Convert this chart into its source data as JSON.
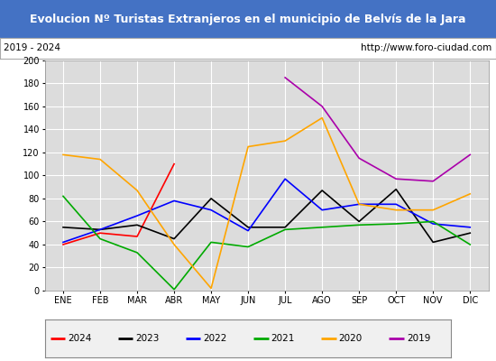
{
  "title": "Evolucion Nº Turistas Extranjeros en el municipio de Belvís de la Jara",
  "subtitle_left": "2019 - 2024",
  "subtitle_right": "http://www.foro-ciudad.com",
  "title_bg_color": "#4472c4",
  "title_text_color": "#ffffff",
  "subtitle_bg_color": "#ffffff",
  "subtitle_text_color": "#000000",
  "plot_bg_color": "#dcdcdc",
  "grid_color": "#ffffff",
  "months": [
    "ENE",
    "FEB",
    "MAR",
    "ABR",
    "MAY",
    "JUN",
    "JUL",
    "AGO",
    "SEP",
    "OCT",
    "NOV",
    "DIC"
  ],
  "ylim": [
    0,
    200
  ],
  "yticks": [
    0,
    20,
    40,
    60,
    80,
    100,
    120,
    140,
    160,
    180,
    200
  ],
  "series": {
    "2024": {
      "color": "#ff0000",
      "data": [
        40,
        50,
        47,
        110,
        null,
        null,
        null,
        null,
        null,
        null,
        null,
        null
      ]
    },
    "2023": {
      "color": "#000000",
      "data": [
        55,
        53,
        57,
        45,
        80,
        55,
        55,
        87,
        60,
        88,
        42,
        50
      ]
    },
    "2022": {
      "color": "#0000ff",
      "data": [
        42,
        53,
        65,
        78,
        70,
        52,
        97,
        70,
        75,
        75,
        58,
        55
      ]
    },
    "2021": {
      "color": "#00aa00",
      "data": [
        82,
        45,
        33,
        1,
        42,
        38,
        53,
        55,
        57,
        58,
        60,
        40
      ]
    },
    "2020": {
      "color": "#ffa500",
      "data": [
        118,
        114,
        87,
        40,
        2,
        125,
        130,
        150,
        75,
        70,
        70,
        84
      ]
    },
    "2019": {
      "color": "#aa00aa",
      "data": [
        null,
        null,
        null,
        null,
        null,
        null,
        185,
        160,
        115,
        97,
        95,
        118
      ]
    }
  },
  "legend_order": [
    "2024",
    "2023",
    "2022",
    "2021",
    "2020",
    "2019"
  ],
  "title_fontsize": 9,
  "subtitle_fontsize": 7.5,
  "tick_fontsize": 7,
  "legend_fontsize": 7.5
}
